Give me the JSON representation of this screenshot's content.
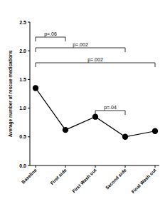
{
  "chart_data": {
    "type": "line",
    "y_label": "Average number of rescue medications",
    "categories": [
      "Baseline",
      "First side",
      "First Wash out",
      "Second side",
      "Final Wash out"
    ],
    "values": [
      1.35,
      0.62,
      0.85,
      0.5,
      0.6
    ],
    "color": "#000000",
    "marker": "circle",
    "ylim": [
      0,
      2.5
    ],
    "yticks": [
      {
        "value": 0,
        "label": "0.0"
      },
      {
        "value": 0.5,
        "label": "0.5"
      },
      {
        "value": 1,
        "label": "1.0"
      },
      {
        "value": 1.5,
        "label": "1.5"
      },
      {
        "value": 2,
        "label": "2.0"
      },
      {
        "value": 2.5,
        "label": "2.5"
      }
    ],
    "grid": false,
    "annotations": [
      {
        "text": "p=.06",
        "start": "Baseline",
        "end": "First side"
      },
      {
        "text": "p=.002",
        "start": "Baseline",
        "end": "Second side"
      },
      {
        "text": "p=.002",
        "start": "Baseline",
        "end": "Final Wash out"
      },
      {
        "text": "p=.04",
        "start": "First Wash out",
        "end": "Second side"
      }
    ]
  }
}
